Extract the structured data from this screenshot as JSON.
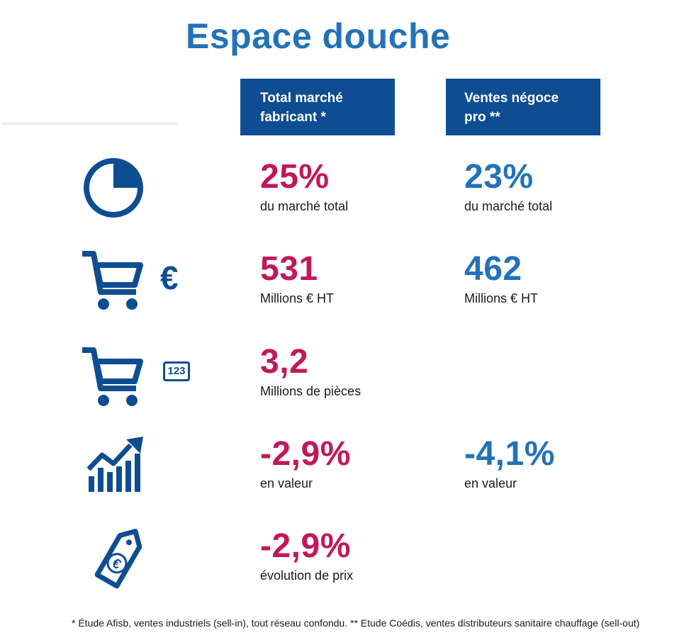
{
  "title": "Espace douche",
  "columns": {
    "fabricant": "Total marché\nfabricant *",
    "negoce": "Ventes négoce\npro **"
  },
  "rows": [
    {
      "icon": "pie-chart-icon",
      "fabricant": {
        "value": "25%",
        "label": "du marché total"
      },
      "negoce": {
        "value": "23%",
        "label": "du marché total"
      }
    },
    {
      "icon": "cart-euro-icon",
      "fabricant": {
        "value": "531",
        "label": "Millions € HT"
      },
      "negoce": {
        "value": "462",
        "label": "Millions € HT"
      }
    },
    {
      "icon": "cart-count-icon",
      "fabricant": {
        "value": "3,2",
        "label": "Millions de pièces"
      }
    },
    {
      "icon": "growth-chart-icon",
      "fabricant": {
        "value": "-2,9%",
        "label": "en valeur"
      },
      "negoce": {
        "value": "-4,1%",
        "label": "en valeur"
      }
    },
    {
      "icon": "price-tag-euro-icon",
      "fabricant": {
        "value": "-2,9%",
        "label": "évolution de prix"
      }
    }
  ],
  "icons": {
    "euro_symbol": "€",
    "count_symbol": "123"
  },
  "footnote": "* Étude Afisb, ventes industriels (sell-in), tout réseau confondu. ** Etude Coédis, ventes distributeurs sanitaire chauffage (sell-out)",
  "colors": {
    "navy": "#0e4d92",
    "blue": "#2372b8",
    "magenta": "#c2185b"
  }
}
